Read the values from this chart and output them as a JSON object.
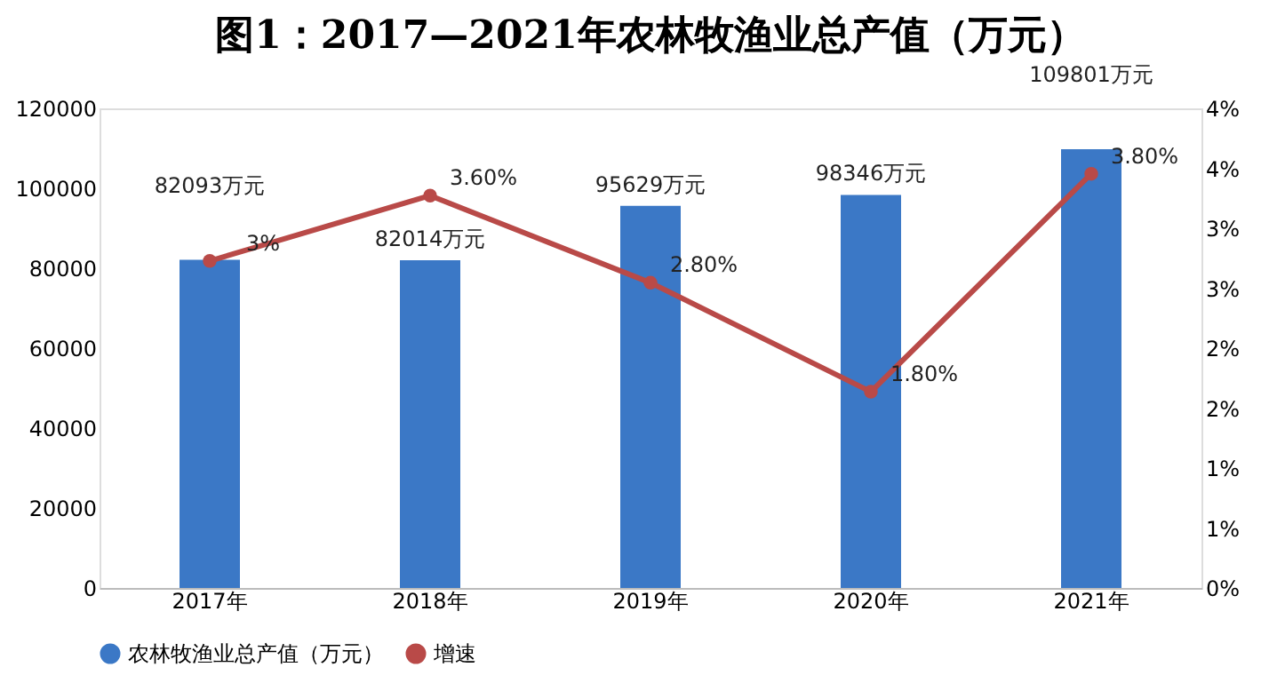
{
  "chart_data": {
    "type": "bar",
    "title": "图1：2017—2021年农林牧渔业总产值（万元）",
    "categories": [
      "2017年",
      "2018年",
      "2019年",
      "2020年",
      "2021年"
    ],
    "series": [
      {
        "name": "农林牧渔业总产值（万元）",
        "color": "#3b78c6",
        "values": [
          82093,
          82014,
          95629,
          98346,
          109801
        ],
        "value_labels": [
          "82093万元",
          "82014万元",
          "95629万元",
          "98346万元",
          "109801万元"
        ]
      },
      {
        "name": "增速",
        "type": "line",
        "axis": "y2",
        "color": "#b94a48",
        "marker": "circle",
        "values": [
          3,
          3.6,
          2.8,
          1.8,
          3.8
        ],
        "value_labels": [
          "3%",
          "3.60%",
          "2.80%",
          "1.80%",
          "3.80%"
        ]
      }
    ],
    "ylim": [
      0,
      120000
    ],
    "yticks": [
      0,
      20000,
      40000,
      60000,
      80000,
      100000,
      120000
    ],
    "y2lim": [
      0,
      4.4
    ],
    "y2ticks": [
      {
        "value": 0,
        "label": "0%"
      },
      {
        "value": 0.55,
        "label": "1%"
      },
      {
        "value": 1.1,
        "label": "1%"
      },
      {
        "value": 1.65,
        "label": "2%"
      },
      {
        "value": 2.2,
        "label": "2%"
      },
      {
        "value": 2.75,
        "label": "3%"
      },
      {
        "value": 3.3,
        "label": "3%"
      },
      {
        "value": 3.85,
        "label": "4%"
      },
      {
        "value": 4.4,
        "label": "4%"
      }
    ],
    "grid": false,
    "legend": "bottom"
  }
}
